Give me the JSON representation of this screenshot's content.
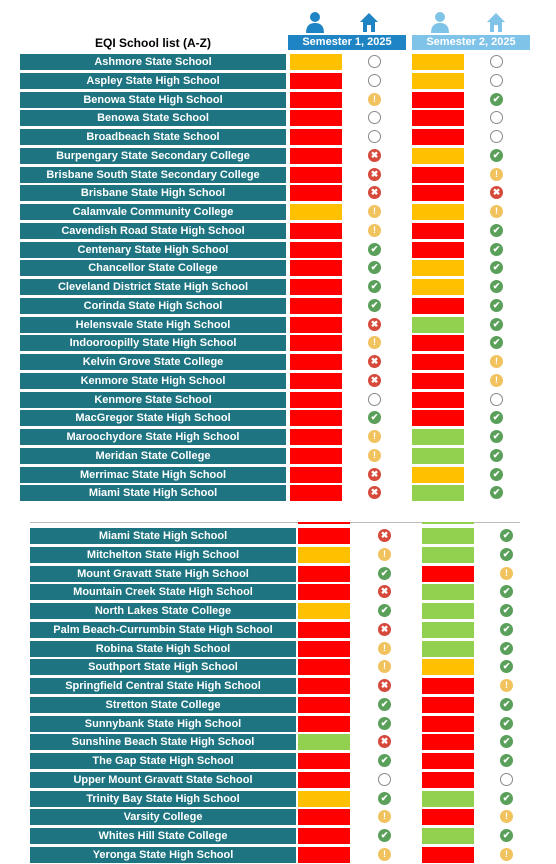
{
  "header": {
    "title": "EQI School list (A-Z)",
    "semester1": "Semester 1, 2025",
    "semester2": "Semester 2, 2025"
  },
  "colors": {
    "red": "#ff0000",
    "amber": "#ffc000",
    "green": "#92d050",
    "teal": "#1e7481",
    "sem1_blue": "#1f84c3",
    "sem2_blue": "#7fc3e8"
  },
  "icons": [
    "person-icon",
    "home-icon"
  ],
  "table1": [
    {
      "name": "Ashmore State School",
      "s1": "amber",
      "s1_home": "blank",
      "s2": "amber",
      "s2_home": "blank"
    },
    {
      "name": "Aspley State High School",
      "s1": "red",
      "s1_home": "blank",
      "s2": "amber",
      "s2_home": "blank"
    },
    {
      "name": "Benowa State High School",
      "s1": "red",
      "s1_home": "warn",
      "s2": "red",
      "s2_home": "tick"
    },
    {
      "name": "Benowa State School",
      "s1": "red",
      "s1_home": "blank",
      "s2": "red",
      "s2_home": "blank"
    },
    {
      "name": "Broadbeach State School",
      "s1": "red",
      "s1_home": "blank",
      "s2": "red",
      "s2_home": "blank"
    },
    {
      "name": "Burpengary State Secondary College",
      "s1": "red",
      "s1_home": "cross",
      "s2": "amber",
      "s2_home": "tick"
    },
    {
      "name": "Brisbane South State Secondary College",
      "s1": "red",
      "s1_home": "cross",
      "s2": "red",
      "s2_home": "warn"
    },
    {
      "name": "Brisbane State High School",
      "s1": "red",
      "s1_home": "cross",
      "s2": "red",
      "s2_home": "cross"
    },
    {
      "name": "Calamvale Community College",
      "s1": "amber",
      "s1_home": "warn",
      "s2": "amber",
      "s2_home": "warn"
    },
    {
      "name": "Cavendish Road State High School",
      "s1": "red",
      "s1_home": "warn",
      "s2": "red",
      "s2_home": "tick"
    },
    {
      "name": "Centenary State High School",
      "s1": "red",
      "s1_home": "tick",
      "s2": "red",
      "s2_home": "tick"
    },
    {
      "name": "Chancellor State College",
      "s1": "red",
      "s1_home": "tick",
      "s2": "amber",
      "s2_home": "tick"
    },
    {
      "name": "Cleveland District State High School",
      "s1": "red",
      "s1_home": "tick",
      "s2": "amber",
      "s2_home": "tick"
    },
    {
      "name": "Corinda State High School",
      "s1": "red",
      "s1_home": "tick",
      "s2": "red",
      "s2_home": "tick"
    },
    {
      "name": "Helensvale State High School",
      "s1": "red",
      "s1_home": "cross",
      "s2": "green",
      "s2_home": "tick"
    },
    {
      "name": "Indooroopilly State High School",
      "s1": "red",
      "s1_home": "warn",
      "s2": "red",
      "s2_home": "tick"
    },
    {
      "name": "Kelvin Grove State College",
      "s1": "red",
      "s1_home": "cross",
      "s2": "red",
      "s2_home": "warn"
    },
    {
      "name": "Kenmore State High School",
      "s1": "red",
      "s1_home": "cross",
      "s2": "red",
      "s2_home": "warn"
    },
    {
      "name": "Kenmore State School",
      "s1": "red",
      "s1_home": "blank",
      "s2": "red",
      "s2_home": "blank"
    },
    {
      "name": "MacGregor State High School",
      "s1": "red",
      "s1_home": "tick",
      "s2": "red",
      "s2_home": "tick"
    },
    {
      "name": "Maroochydore State High School",
      "s1": "red",
      "s1_home": "warn",
      "s2": "green",
      "s2_home": "tick"
    },
    {
      "name": "Meridan State College",
      "s1": "red",
      "s1_home": "warn",
      "s2": "green",
      "s2_home": "tick"
    },
    {
      "name": "Merrimac State High School",
      "s1": "red",
      "s1_home": "cross",
      "s2": "amber",
      "s2_home": "tick"
    },
    {
      "name": "Miami State High School",
      "s1": "red",
      "s1_home": "cross",
      "s2": "green",
      "s2_home": "tick"
    }
  ],
  "table2": [
    {
      "name": "Miami State High School",
      "s1": "red",
      "s1_home": "cross",
      "s2": "green",
      "s2_home": "tick"
    },
    {
      "name": "Mitchelton State High School",
      "s1": "amber",
      "s1_home": "warn",
      "s2": "green",
      "s2_home": "tick"
    },
    {
      "name": "Mount Gravatt State High School",
      "s1": "red",
      "s1_home": "tick",
      "s2": "red",
      "s2_home": "warn"
    },
    {
      "name": "Mountain Creek State High School",
      "s1": "red",
      "s1_home": "cross",
      "s2": "green",
      "s2_home": "tick"
    },
    {
      "name": "North Lakes State College",
      "s1": "amber",
      "s1_home": "tick",
      "s2": "green",
      "s2_home": "tick"
    },
    {
      "name": "Palm Beach-Currumbin State High School",
      "s1": "red",
      "s1_home": "cross",
      "s2": "green",
      "s2_home": "tick"
    },
    {
      "name": "Robina State High School",
      "s1": "red",
      "s1_home": "warn",
      "s2": "green",
      "s2_home": "tick"
    },
    {
      "name": "Southport State High School",
      "s1": "red",
      "s1_home": "warn",
      "s2": "amber",
      "s2_home": "tick"
    },
    {
      "name": "Springfield Central State High School",
      "s1": "red",
      "s1_home": "cross",
      "s2": "red",
      "s2_home": "warn"
    },
    {
      "name": "Stretton State College",
      "s1": "red",
      "s1_home": "tick",
      "s2": "red",
      "s2_home": "tick"
    },
    {
      "name": "Sunnybank State High School",
      "s1": "red",
      "s1_home": "tick",
      "s2": "red",
      "s2_home": "tick"
    },
    {
      "name": "Sunshine Beach State High School",
      "s1": "green",
      "s1_home": "cross",
      "s2": "red",
      "s2_home": "tick"
    },
    {
      "name": "The Gap State High School",
      "s1": "red",
      "s1_home": "tick",
      "s2": "red",
      "s2_home": "tick"
    },
    {
      "name": "Upper Mount Gravatt State School",
      "s1": "red",
      "s1_home": "blank",
      "s2": "red",
      "s2_home": "blank"
    },
    {
      "name": "Trinity Bay State High School",
      "s1": "amber",
      "s1_home": "tick",
      "s2": "green",
      "s2_home": "tick"
    },
    {
      "name": "Varsity College",
      "s1": "red",
      "s1_home": "warn",
      "s2": "red",
      "s2_home": "warn"
    },
    {
      "name": "Whites Hill State College",
      "s1": "red",
      "s1_home": "tick",
      "s2": "green",
      "s2_home": "tick"
    },
    {
      "name": "Yeronga State High School",
      "s1": "red",
      "s1_home": "warn",
      "s2": "red",
      "s2_home": "warn"
    }
  ]
}
